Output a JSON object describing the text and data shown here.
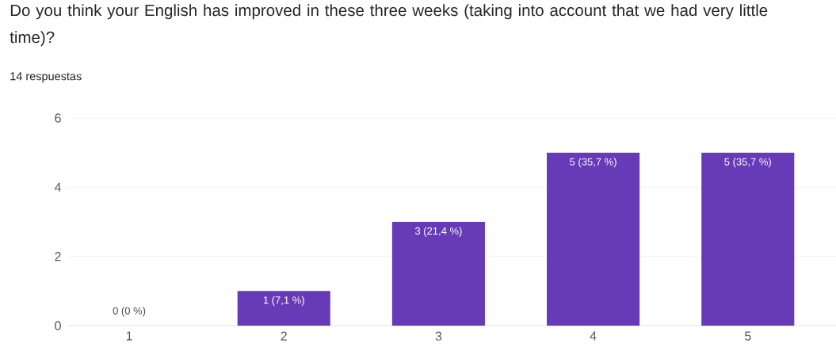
{
  "chart_data": {
    "type": "bar",
    "title": "Do you think your English has improved in these three weeks (taking into account that we had very little time)?",
    "subtitle": "14 respuestas",
    "categories": [
      "1",
      "2",
      "3",
      "4",
      "5"
    ],
    "values": [
      0,
      1,
      3,
      5,
      5
    ],
    "value_labels": [
      "0 (0 %)",
      "1 (7,1 %)",
      "3 (21,4 %)",
      "5 (35,7 %)",
      "5 (35,7 %)"
    ],
    "color": "#673ab7",
    "ylim": [
      0,
      6
    ],
    "yticks": [
      0,
      2,
      4,
      6
    ],
    "grid": "y"
  }
}
